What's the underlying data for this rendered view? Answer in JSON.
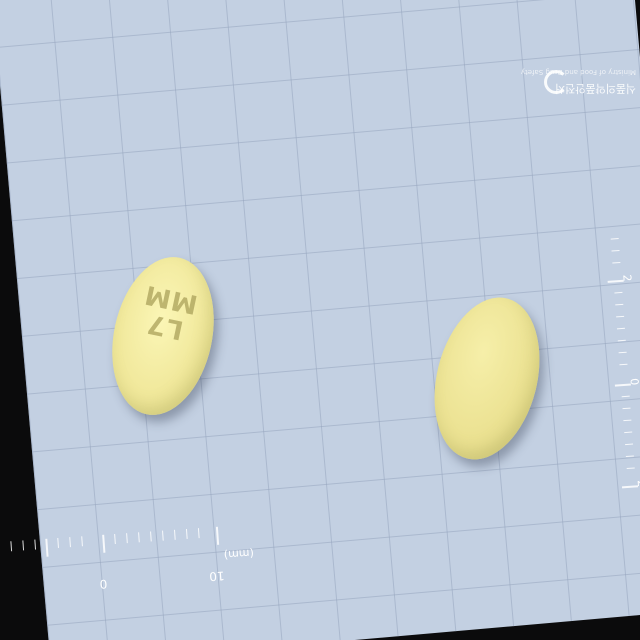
{
  "photo": {
    "subject": "two yellow round tablets on a grid",
    "board_color": "#c3d0e2",
    "pill_color": "#efe697"
  },
  "tablet_front": {
    "imprint_line1": "L7",
    "imprint_line2": "MM"
  },
  "watermark": {
    "korean_text": "식품의약품안전처",
    "english_text": "Ministry of Food and Drug Safety",
    "logo_icon": "mfds-logo-icon"
  },
  "scale_bottom": {
    "label_0": "0",
    "label_10": "10",
    "unit": "(mm)"
  },
  "scale_right": {
    "label_top": "2",
    "label_mid": "0",
    "label_bottom": "2"
  }
}
